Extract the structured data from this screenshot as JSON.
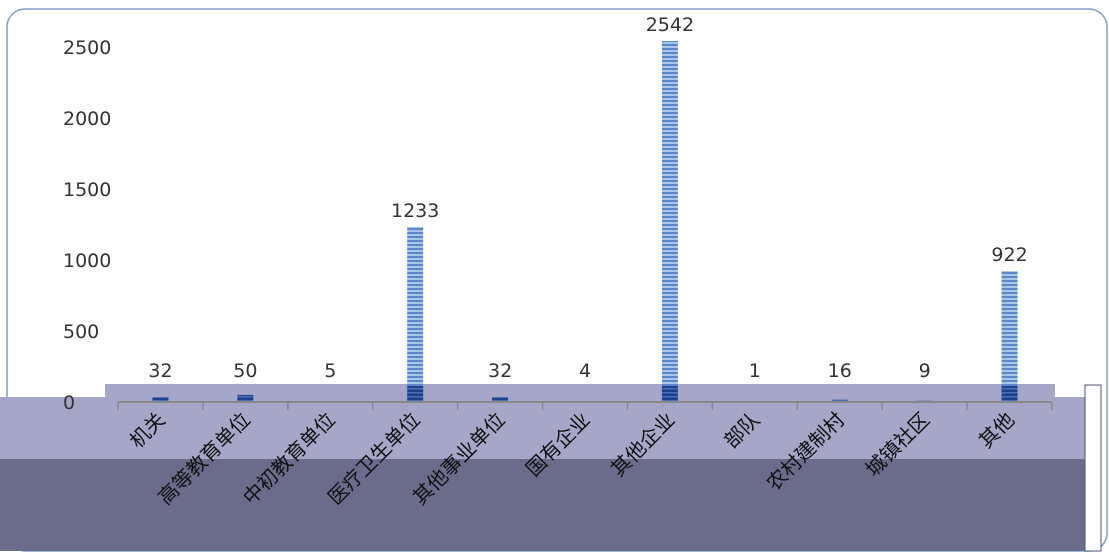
{
  "chart_data": {
    "type": "bar",
    "categories": [
      "机关",
      "高等教育单位",
      "中初教育单位",
      "医疗卫生单位",
      "其他事业单位",
      "国有企业",
      "其他企业",
      "部队",
      "农村建制村",
      "城镇社区",
      "其他"
    ],
    "series": [
      {
        "values": [
          32,
          50,
          5,
          1233,
          32,
          4,
          2542,
          1,
          16,
          9,
          922
        ]
      }
    ],
    "yticks": [
      "0",
      "500",
      "1000",
      "1500",
      "2000",
      "2500"
    ],
    "ylim": [
      0,
      2500
    ],
    "title": "",
    "xlabel": "",
    "ylabel": "",
    "grid": false,
    "legend": "none",
    "colors": {
      "bar_fill": "#a9c4e6",
      "bar_stripe": "#5b88c8",
      "bar_dark": "#1f3f8f",
      "band_light": "#a6a6c8",
      "band_dark": "#6b6b8c",
      "frame_border": "#7f9fc7"
    }
  }
}
